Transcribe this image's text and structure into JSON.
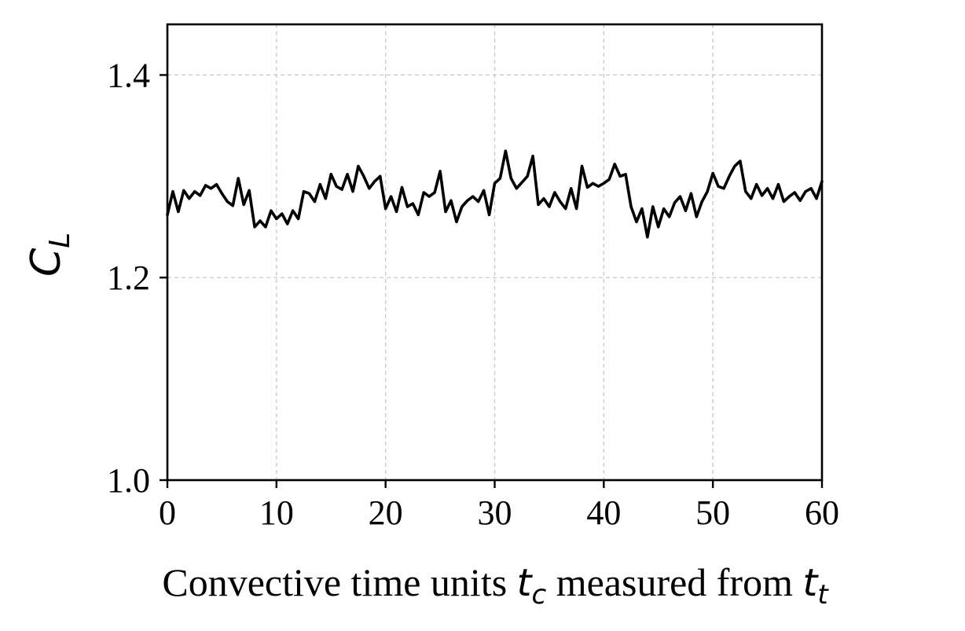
{
  "chart_data": {
    "type": "line",
    "xlabel_text": "Convective time units ",
    "xlabel_math_1": "t",
    "xlabel_math_1_sub": "c",
    "xlabel_text_2": " measured from ",
    "xlabel_math_2": "t",
    "xlabel_math_2_sub": "t",
    "ylabel_math": "C",
    "ylabel_math_sub": "L",
    "xlim": [
      0,
      60
    ],
    "ylim": [
      1.0,
      1.45
    ],
    "x_ticks": [
      0,
      10,
      20,
      30,
      40,
      50,
      60
    ],
    "x_tick_labels": [
      "0",
      "10",
      "20",
      "30",
      "40",
      "50",
      "60"
    ],
    "y_ticks": [
      1.0,
      1.2,
      1.4
    ],
    "y_tick_labels": [
      "1.0",
      "1.2",
      "1.4"
    ],
    "grid": true,
    "legend": "none",
    "series": [
      {
        "color": "#000000",
        "x": [
          0,
          0.5,
          1,
          1.5,
          2,
          2.5,
          3,
          3.5,
          4,
          4.5,
          5,
          5.5,
          6,
          6.5,
          7,
          7.5,
          8,
          8.5,
          9,
          9.5,
          10,
          10.5,
          11,
          11.5,
          12,
          12.5,
          13,
          13.5,
          14,
          14.5,
          15,
          15.5,
          16,
          16.5,
          17,
          17.5,
          18,
          18.5,
          19,
          19.5,
          20,
          20.5,
          21,
          21.5,
          22,
          22.5,
          23,
          23.5,
          24,
          24.5,
          25,
          25.5,
          26,
          26.5,
          27,
          27.5,
          28,
          28.5,
          29,
          29.5,
          30,
          30.5,
          31,
          31.5,
          32,
          32.5,
          33,
          33.5,
          34,
          34.5,
          35,
          35.5,
          36,
          36.5,
          37,
          37.5,
          38,
          38.5,
          39,
          39.5,
          40,
          40.5,
          41,
          41.5,
          42,
          42.5,
          43,
          43.5,
          44,
          44.5,
          45,
          45.5,
          46,
          46.5,
          47,
          47.5,
          48,
          48.5,
          49,
          49.5,
          50,
          50.5,
          51,
          51.5,
          52,
          52.5,
          53,
          53.5,
          54,
          54.5,
          55,
          55.5,
          56,
          56.5,
          57,
          57.5,
          58,
          58.5,
          59,
          59.5,
          60
        ],
        "values": [
          1.262,
          1.285,
          1.265,
          1.286,
          1.278,
          1.285,
          1.281,
          1.291,
          1.288,
          1.292,
          1.283,
          1.275,
          1.271,
          1.298,
          1.272,
          1.286,
          1.25,
          1.256,
          1.25,
          1.266,
          1.258,
          1.263,
          1.253,
          1.266,
          1.258,
          1.285,
          1.283,
          1.275,
          1.292,
          1.278,
          1.302,
          1.29,
          1.287,
          1.302,
          1.285,
          1.31,
          1.3,
          1.288,
          1.295,
          1.3,
          1.268,
          1.28,
          1.265,
          1.289,
          1.27,
          1.273,
          1.262,
          1.284,
          1.28,
          1.284,
          1.305,
          1.265,
          1.276,
          1.255,
          1.27,
          1.276,
          1.28,
          1.275,
          1.286,
          1.262,
          1.293,
          1.298,
          1.325,
          1.298,
          1.288,
          1.294,
          1.3,
          1.32,
          1.272,
          1.278,
          1.27,
          1.284,
          1.275,
          1.268,
          1.288,
          1.268,
          1.31,
          1.289,
          1.293,
          1.29,
          1.293,
          1.297,
          1.312,
          1.3,
          1.302,
          1.27,
          1.255,
          1.268,
          1.24,
          1.27,
          1.25,
          1.268,
          1.26,
          1.274,
          1.28,
          1.266,
          1.283,
          1.26,
          1.275,
          1.285,
          1.303,
          1.29,
          1.288,
          1.3,
          1.31,
          1.315,
          1.285,
          1.278,
          1.292,
          1.281,
          1.288,
          1.278,
          1.292,
          1.275,
          1.28,
          1.284,
          1.276,
          1.285,
          1.288,
          1.278,
          1.295
        ]
      }
    ]
  }
}
